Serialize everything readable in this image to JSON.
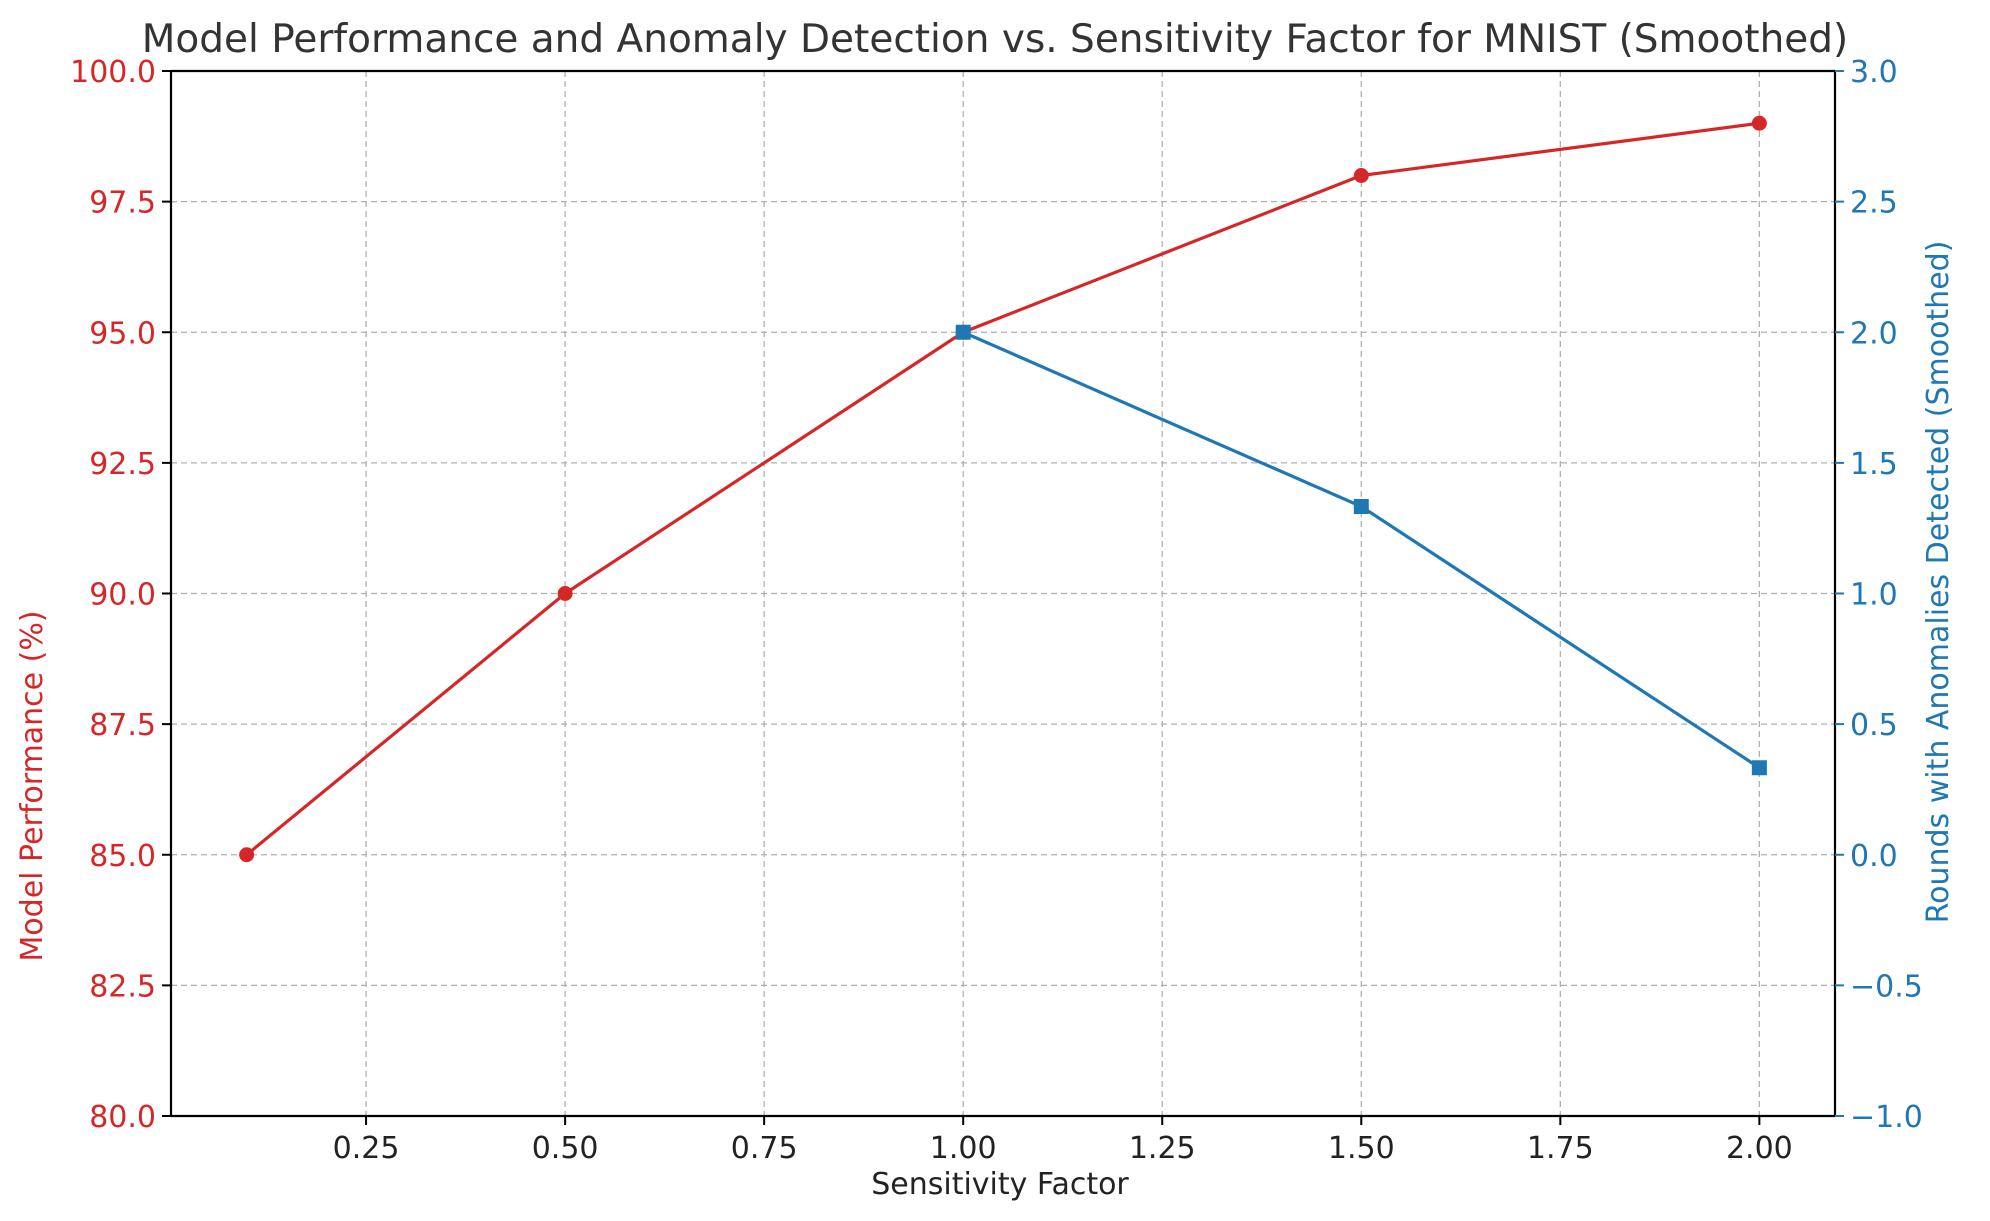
{
  "colors": {
    "left_axis": "#d62728",
    "right_axis": "#1f77b4",
    "text": "#333333"
  },
  "chart_data": {
    "type": "line",
    "title": "Model Performance and Anomaly Detection vs. Sensitivity Factor for MNIST (Smoothed)",
    "xlabel": "Sensitivity Factor",
    "xlim": [
      0.005,
      2.095
    ],
    "x_ticks": [
      0.25,
      0.5,
      0.75,
      1.0,
      1.25,
      1.5,
      1.75,
      2.0
    ],
    "x_tick_labels": [
      "0.25",
      "0.50",
      "0.75",
      "1.00",
      "1.25",
      "1.50",
      "1.75",
      "2.00"
    ],
    "y_left": {
      "label": "Model Performance (%)",
      "lim": [
        80,
        100
      ],
      "ticks": [
        80,
        82.5,
        85,
        87.5,
        90,
        92.5,
        95,
        97.5,
        100
      ],
      "tick_labels": [
        "80.0",
        "82.5",
        "85.0",
        "87.5",
        "90.0",
        "92.5",
        "95.0",
        "97.5",
        "100.0"
      ]
    },
    "y_right": {
      "label": "Rounds with Anomalies Detected (Smoothed)",
      "lim": [
        -1.0,
        3.0
      ],
      "ticks": [
        -1.0,
        -0.5,
        0.0,
        0.5,
        1.0,
        1.5,
        2.0,
        2.5,
        3.0
      ],
      "tick_labels": [
        "−1.0",
        "−0.5",
        "0.0",
        "0.5",
        "1.0",
        "1.5",
        "2.0",
        "2.5",
        "3.0"
      ]
    },
    "grid": true,
    "series": [
      {
        "axis": "left",
        "color": "#d62728",
        "marker": "circle",
        "x": [
          0.1,
          0.5,
          1.0,
          1.5,
          2.0
        ],
        "values": [
          85,
          90,
          95,
          98,
          99
        ]
      },
      {
        "axis": "right",
        "color": "#1f77b4",
        "marker": "square",
        "x": [
          1.0,
          1.5,
          2.0
        ],
        "values": [
          2.0,
          1.333,
          0.333
        ]
      }
    ]
  }
}
